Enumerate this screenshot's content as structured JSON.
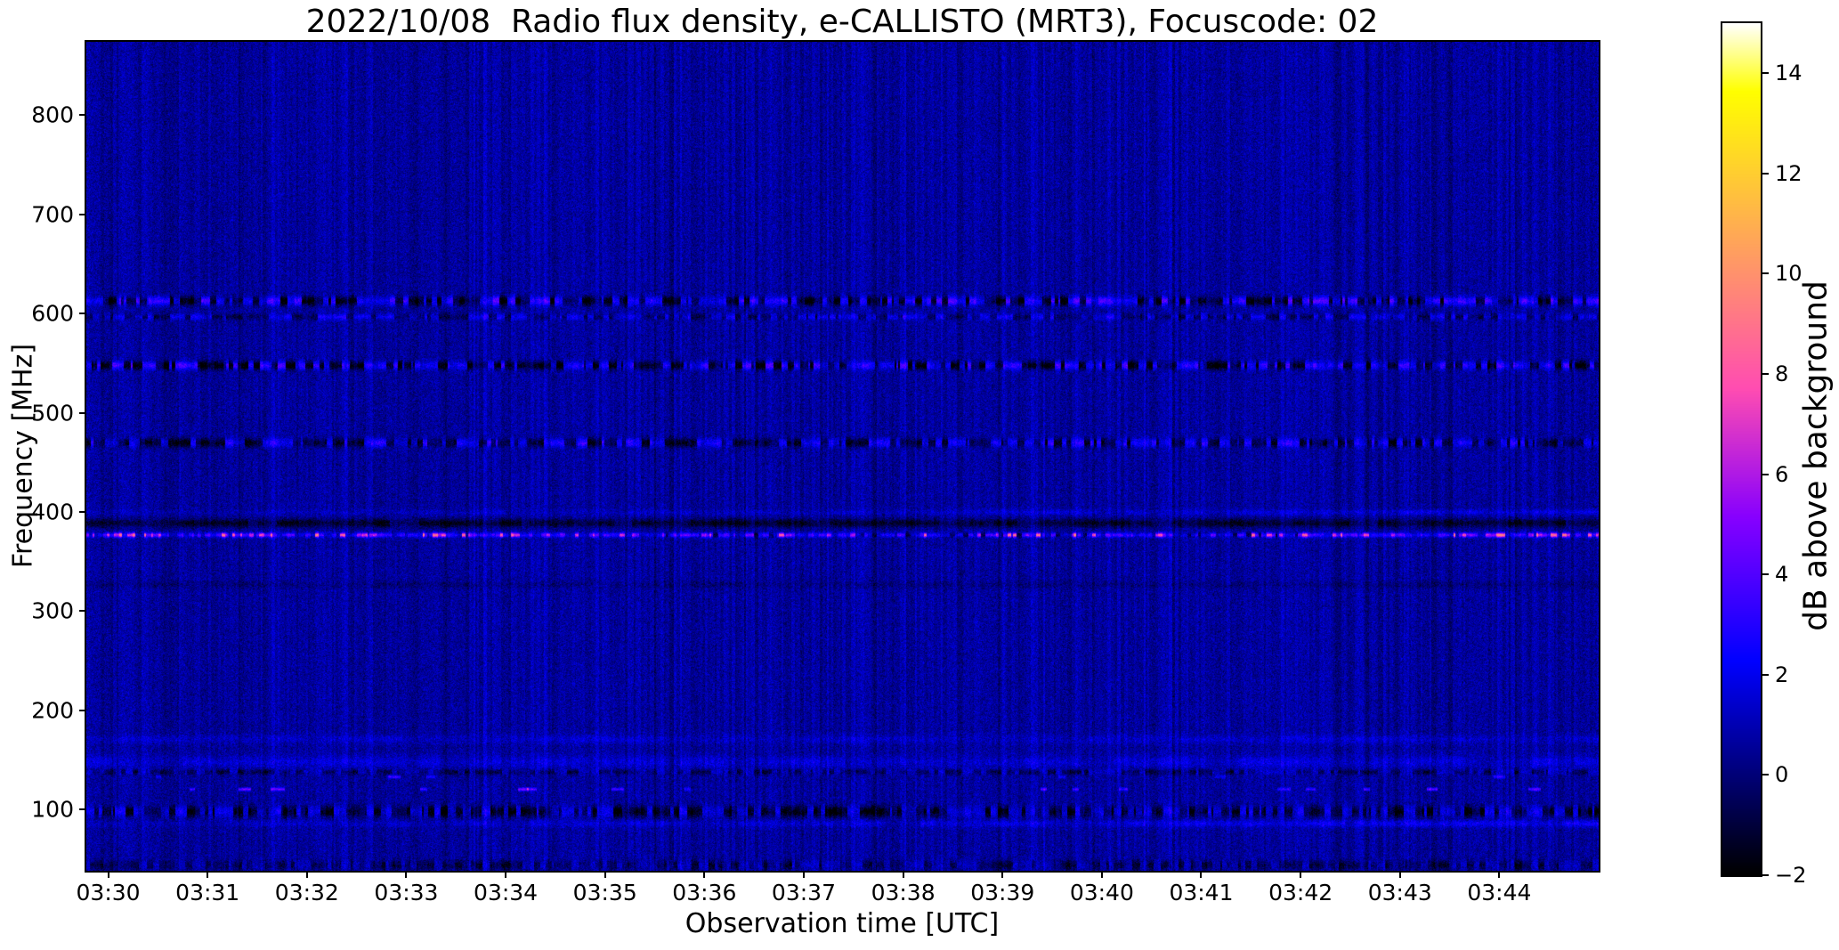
{
  "title": "2022/10/08  Radio flux density, e-CALLISTO (MRT3), Focuscode: 02",
  "chart_data": {
    "type": "heatmap",
    "subtype": "radio-spectrogram",
    "title": "2022/10/08  Radio flux density, e-CALLISTO (MRT3), Focuscode: 02",
    "xlabel": "Observation time [UTC]",
    "ylabel": "Frequency [MHz]",
    "x_tick_labels": [
      "03:30",
      "03:31",
      "03:32",
      "03:33",
      "03:34",
      "03:35",
      "03:36",
      "03:37",
      "03:38",
      "03:39",
      "03:40",
      "03:41",
      "03:42",
      "03:43",
      "03:44"
    ],
    "x_tick_minutes": [
      0,
      1,
      2,
      3,
      4,
      5,
      6,
      7,
      8,
      9,
      10,
      11,
      12,
      13,
      14
    ],
    "x_range_minutes": [
      -0.22,
      15.0
    ],
    "y_ticks": [
      {
        "value": 800,
        "label": "800"
      },
      {
        "value": 700,
        "label": "700"
      },
      {
        "value": 600,
        "label": "600"
      },
      {
        "value": 500,
        "label": "500"
      },
      {
        "value": 400,
        "label": "400"
      },
      {
        "value": 300,
        "label": "300"
      },
      {
        "value": 200,
        "label": "200"
      },
      {
        "value": 100,
        "label": "100"
      }
    ],
    "ylim": [
      38,
      874
    ],
    "grid": false,
    "colorbar": {
      "label": "dB above background",
      "vmin": -2,
      "vmax": 15,
      "colormap": "gnuplot2",
      "ticks": [
        {
          "value": 14,
          "label": "14"
        },
        {
          "value": 12,
          "label": "12"
        },
        {
          "value": 10,
          "label": "10"
        },
        {
          "value": 8,
          "label": "8"
        },
        {
          "value": 6,
          "label": "6"
        },
        {
          "value": 4,
          "label": "4"
        },
        {
          "value": 2,
          "label": "2"
        },
        {
          "value": 0,
          "label": "0"
        },
        {
          "value": -2,
          "label": "−2"
        }
      ]
    },
    "background_level_db": 0.6,
    "noise_sigma_db": 0.55,
    "bands": [
      {
        "freq_mhz": 613,
        "sigma_mhz": 3.2,
        "kind": "speckle",
        "amp_db": 2.6,
        "dark_db": -2.6,
        "bright_fraction": 0.55
      },
      {
        "freq_mhz": 597,
        "sigma_mhz": 2.2,
        "kind": "speckle",
        "amp_db": 1.6,
        "dark_db": -1.4,
        "bright_fraction": 0.5
      },
      {
        "freq_mhz": 548,
        "sigma_mhz": 3.0,
        "kind": "speckle",
        "amp_db": 2.4,
        "dark_db": -2.8,
        "bright_fraction": 0.5
      },
      {
        "freq_mhz": 470,
        "sigma_mhz": 3.2,
        "kind": "speckle",
        "amp_db": 2.0,
        "dark_db": -2.2,
        "bright_fraction": 0.5
      },
      {
        "freq_mhz": 400,
        "sigma_mhz": 2.0,
        "kind": "smooth",
        "amp_db": 1.3,
        "profile": "right"
      },
      {
        "freq_mhz": 389,
        "sigma_mhz": 3.0,
        "kind": "dark",
        "amp_db": -1.9
      },
      {
        "freq_mhz": 377,
        "sigma_mhz": 1.6,
        "kind": "line",
        "amp_db": 2.8,
        "spark_db": 8.0
      },
      {
        "freq_mhz": 327,
        "sigma_mhz": 2.5,
        "kind": "dark",
        "amp_db": -0.55
      },
      {
        "freq_mhz": 171,
        "sigma_mhz": 3.0,
        "kind": "smooth",
        "amp_db": 0.85,
        "profile": "flat"
      },
      {
        "freq_mhz": 148,
        "sigma_mhz": 4.5,
        "kind": "smooth",
        "amp_db": 1.05,
        "profile": "flat"
      },
      {
        "freq_mhz": 138,
        "sigma_mhz": 2.0,
        "kind": "speckle",
        "amp_db": 0.6,
        "dark_db": -1.6,
        "bright_fraction": 0.4
      },
      {
        "freq_mhz": 98,
        "sigma_mhz": 4.0,
        "kind": "speckle",
        "amp_db": 1.4,
        "dark_db": -2.6,
        "bright_fraction": 0.45
      },
      {
        "freq_mhz": 86,
        "sigma_mhz": 2.5,
        "kind": "smooth",
        "amp_db": 1.7,
        "profile": "right"
      },
      {
        "freq_mhz": 44,
        "sigma_mhz": 3.5,
        "kind": "speckle",
        "amp_db": 0.6,
        "dark_db": -1.8,
        "bright_fraction": 0.4
      }
    ],
    "dash_rows": [
      {
        "freq_mhz": 121,
        "count": 16,
        "amp_db": 3.2
      },
      {
        "freq_mhz": 133,
        "count": 6,
        "amp_db": 2.2
      }
    ],
    "seed": 20221008
  }
}
